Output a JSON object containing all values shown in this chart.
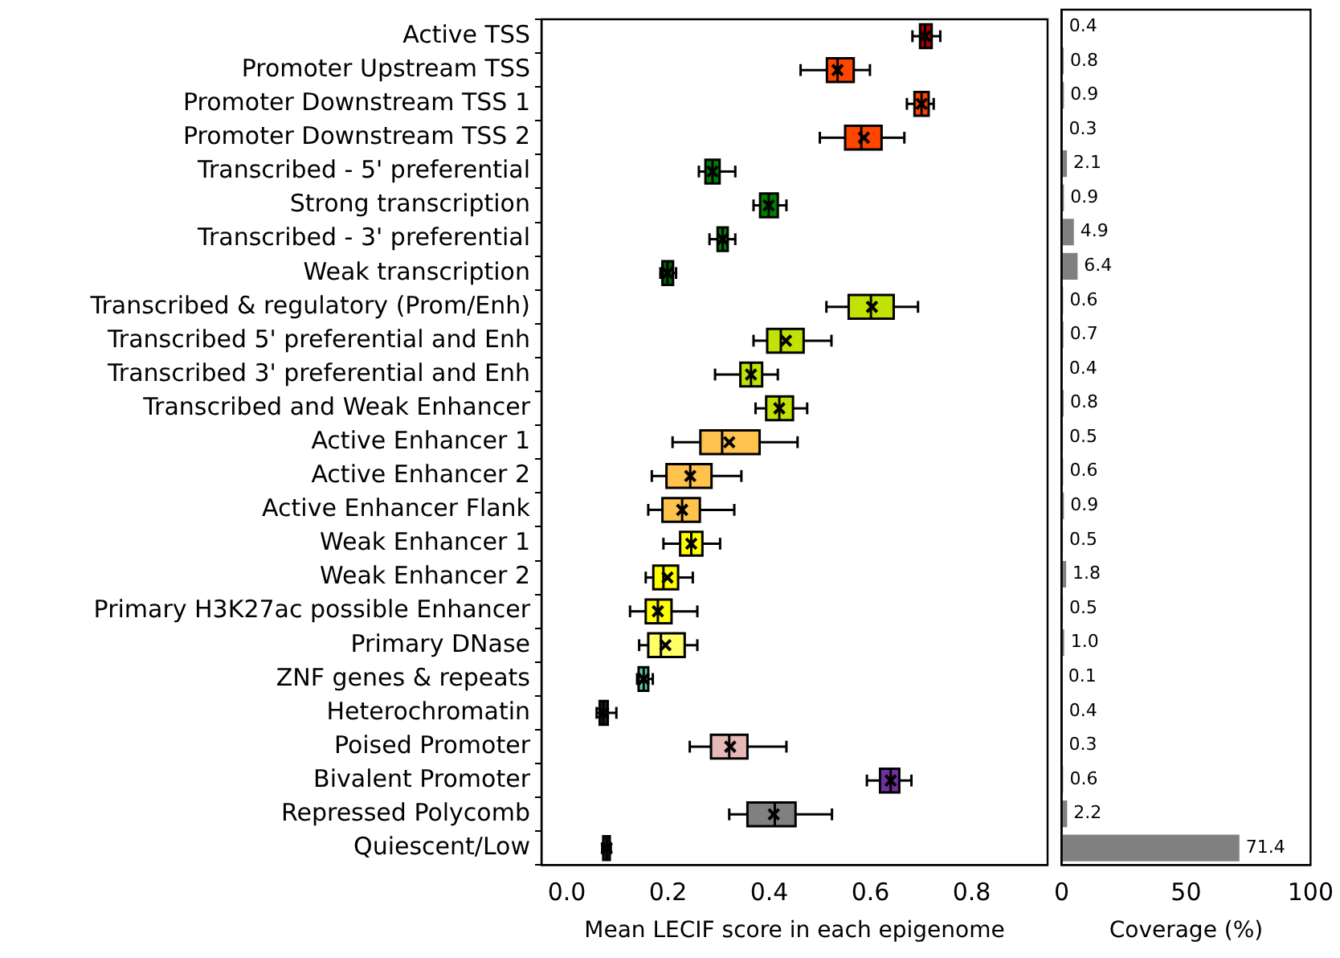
{
  "chart_data": [
    {
      "type": "box",
      "orientation": "horizontal",
      "categories": [
        "Active TSS",
        "Promoter Upstream TSS",
        "Promoter Downstream TSS 1",
        "Promoter Downstream TSS 2",
        "Transcribed - 5' preferential",
        "Strong transcription",
        "Transcribed - 3' preferential",
        "Weak transcription",
        "Transcribed & regulatory (Prom/Enh)",
        "Transcribed 5' preferential and Enh",
        "Transcribed 3' preferential and Enh",
        "Transcribed and Weak Enhancer",
        "Active Enhancer 1",
        "Active Enhancer 2",
        "Active Enhancer Flank",
        "Weak Enhancer 1",
        "Weak Enhancer 2",
        "Primary H3K27ac possible Enhancer",
        "Primary DNase",
        "ZNF genes & repeats",
        "Heterochromatin",
        "Poised Promoter",
        "Bivalent Promoter",
        "Repressed Polycomb",
        "Quiescent/Low"
      ],
      "boxes": [
        {
          "low": 0.683,
          "q1": 0.698,
          "median": 0.708,
          "q3": 0.721,
          "high": 0.738,
          "mean": 0.708
        },
        {
          "low": 0.462,
          "q1": 0.514,
          "median": 0.535,
          "q3": 0.567,
          "high": 0.599,
          "mean": 0.535
        },
        {
          "low": 0.672,
          "q1": 0.687,
          "median": 0.701,
          "q3": 0.715,
          "high": 0.725,
          "mean": 0.701
        },
        {
          "low": 0.5,
          "q1": 0.55,
          "median": 0.582,
          "q3": 0.622,
          "high": 0.667,
          "mean": 0.587
        },
        {
          "low": 0.261,
          "q1": 0.274,
          "median": 0.288,
          "q3": 0.302,
          "high": 0.333,
          "mean": 0.288
        },
        {
          "low": 0.369,
          "q1": 0.382,
          "median": 0.399,
          "q3": 0.417,
          "high": 0.434,
          "mean": 0.399
        },
        {
          "low": 0.282,
          "q1": 0.298,
          "median": 0.308,
          "q3": 0.318,
          "high": 0.333,
          "mean": 0.308
        },
        {
          "low": 0.185,
          "q1": 0.189,
          "median": 0.199,
          "q3": 0.21,
          "high": 0.216,
          "mean": 0.199
        },
        {
          "low": 0.513,
          "q1": 0.557,
          "median": 0.601,
          "q3": 0.646,
          "high": 0.694,
          "mean": 0.603
        },
        {
          "low": 0.369,
          "q1": 0.396,
          "median": 0.423,
          "q3": 0.468,
          "high": 0.523,
          "mean": 0.433
        },
        {
          "low": 0.293,
          "q1": 0.343,
          "median": 0.364,
          "q3": 0.386,
          "high": 0.417,
          "mean": 0.364
        },
        {
          "low": 0.373,
          "q1": 0.394,
          "median": 0.42,
          "q3": 0.447,
          "high": 0.475,
          "mean": 0.42
        },
        {
          "low": 0.209,
          "q1": 0.264,
          "median": 0.307,
          "q3": 0.381,
          "high": 0.456,
          "mean": 0.321
        },
        {
          "low": 0.168,
          "q1": 0.197,
          "median": 0.244,
          "q3": 0.286,
          "high": 0.345,
          "mean": 0.244
        },
        {
          "low": 0.161,
          "q1": 0.189,
          "median": 0.228,
          "q3": 0.263,
          "high": 0.331,
          "mean": 0.228
        },
        {
          "low": 0.191,
          "q1": 0.224,
          "median": 0.246,
          "q3": 0.268,
          "high": 0.303,
          "mean": 0.246
        },
        {
          "low": 0.156,
          "q1": 0.171,
          "median": 0.191,
          "q3": 0.22,
          "high": 0.249,
          "mean": 0.199
        },
        {
          "low": 0.125,
          "q1": 0.156,
          "median": 0.18,
          "q3": 0.207,
          "high": 0.258,
          "mean": 0.18
        },
        {
          "low": 0.143,
          "q1": 0.161,
          "median": 0.186,
          "q3": 0.233,
          "high": 0.258,
          "mean": 0.195
        },
        {
          "low": 0.139,
          "q1": 0.142,
          "median": 0.152,
          "q3": 0.161,
          "high": 0.17,
          "mean": 0.152
        },
        {
          "low": 0.059,
          "q1": 0.065,
          "median": 0.072,
          "q3": 0.081,
          "high": 0.098,
          "mean": 0.072
        },
        {
          "low": 0.243,
          "q1": 0.285,
          "median": 0.321,
          "q3": 0.357,
          "high": 0.434,
          "mean": 0.323
        },
        {
          "low": 0.593,
          "q1": 0.619,
          "median": 0.64,
          "q3": 0.657,
          "high": 0.681,
          "mean": 0.64
        },
        {
          "low": 0.321,
          "q1": 0.357,
          "median": 0.411,
          "q3": 0.452,
          "high": 0.524,
          "mean": 0.409
        },
        {
          "low": 0.07,
          "q1": 0.072,
          "median": 0.079,
          "q3": 0.085,
          "high": 0.087,
          "mean": 0.079
        }
      ],
      "colors": [
        "#b00000",
        "#ff4500",
        "#ff4500",
        "#ff4500",
        "#008000",
        "#008000",
        "#008000",
        "#006400",
        "#c2e105",
        "#c2e105",
        "#c2e105",
        "#c2e105",
        "#ffc34d",
        "#ffc34d",
        "#ffc34d",
        "#ffff00",
        "#ffff00",
        "#ffff00",
        "#ffff66",
        "#66cdaa",
        "#202020",
        "#e6b8b7",
        "#7030a0",
        "#808080",
        "#202020"
      ],
      "marker": "cross",
      "xlim": [
        -0.05,
        0.95
      ],
      "xticks": [
        {
          "value": 0,
          "label": "0.0"
        },
        {
          "value": 0.2,
          "label": "0.2"
        },
        {
          "value": 0.4,
          "label": "0.4"
        },
        {
          "value": 0.6,
          "label": "0.6"
        },
        {
          "value": 0.8,
          "label": "0.8"
        }
      ],
      "xlabel": "Mean LECIF score in each epigenome"
    },
    {
      "type": "bar",
      "orientation": "horizontal",
      "categories": [
        null,
        null,
        null,
        null,
        null,
        null,
        null,
        null,
        null,
        null,
        null,
        null,
        null,
        null,
        null,
        null,
        null,
        null,
        null,
        null,
        null,
        null,
        null,
        null,
        null
      ],
      "values": [
        0.4,
        0.8,
        0.9,
        0.3,
        2.1,
        0.9,
        4.9,
        6.4,
        0.6,
        0.7,
        0.4,
        0.8,
        0.5,
        0.6,
        0.9,
        0.5,
        1.8,
        0.5,
        1.0,
        0.1,
        0.4,
        0.3,
        0.6,
        2.2,
        71.4
      ],
      "value_labels": [
        "0.4",
        "0.8",
        "0.9",
        "0.3",
        "2.1",
        "0.9",
        "4.9",
        "6.4",
        "0.6",
        "0.7",
        "0.4",
        "0.8",
        "0.5",
        "0.6",
        "0.9",
        "0.5",
        "1.8",
        "0.5",
        "1.0",
        "0.1",
        "0.4",
        "0.3",
        "0.6",
        "2.2",
        "71.4"
      ],
      "color": "#808080",
      "xlim": [
        0,
        100
      ],
      "xticks": [
        0,
        50,
        100
      ],
      "xlabel": "Coverage (%)",
      "tick_labels": "x"
    }
  ]
}
